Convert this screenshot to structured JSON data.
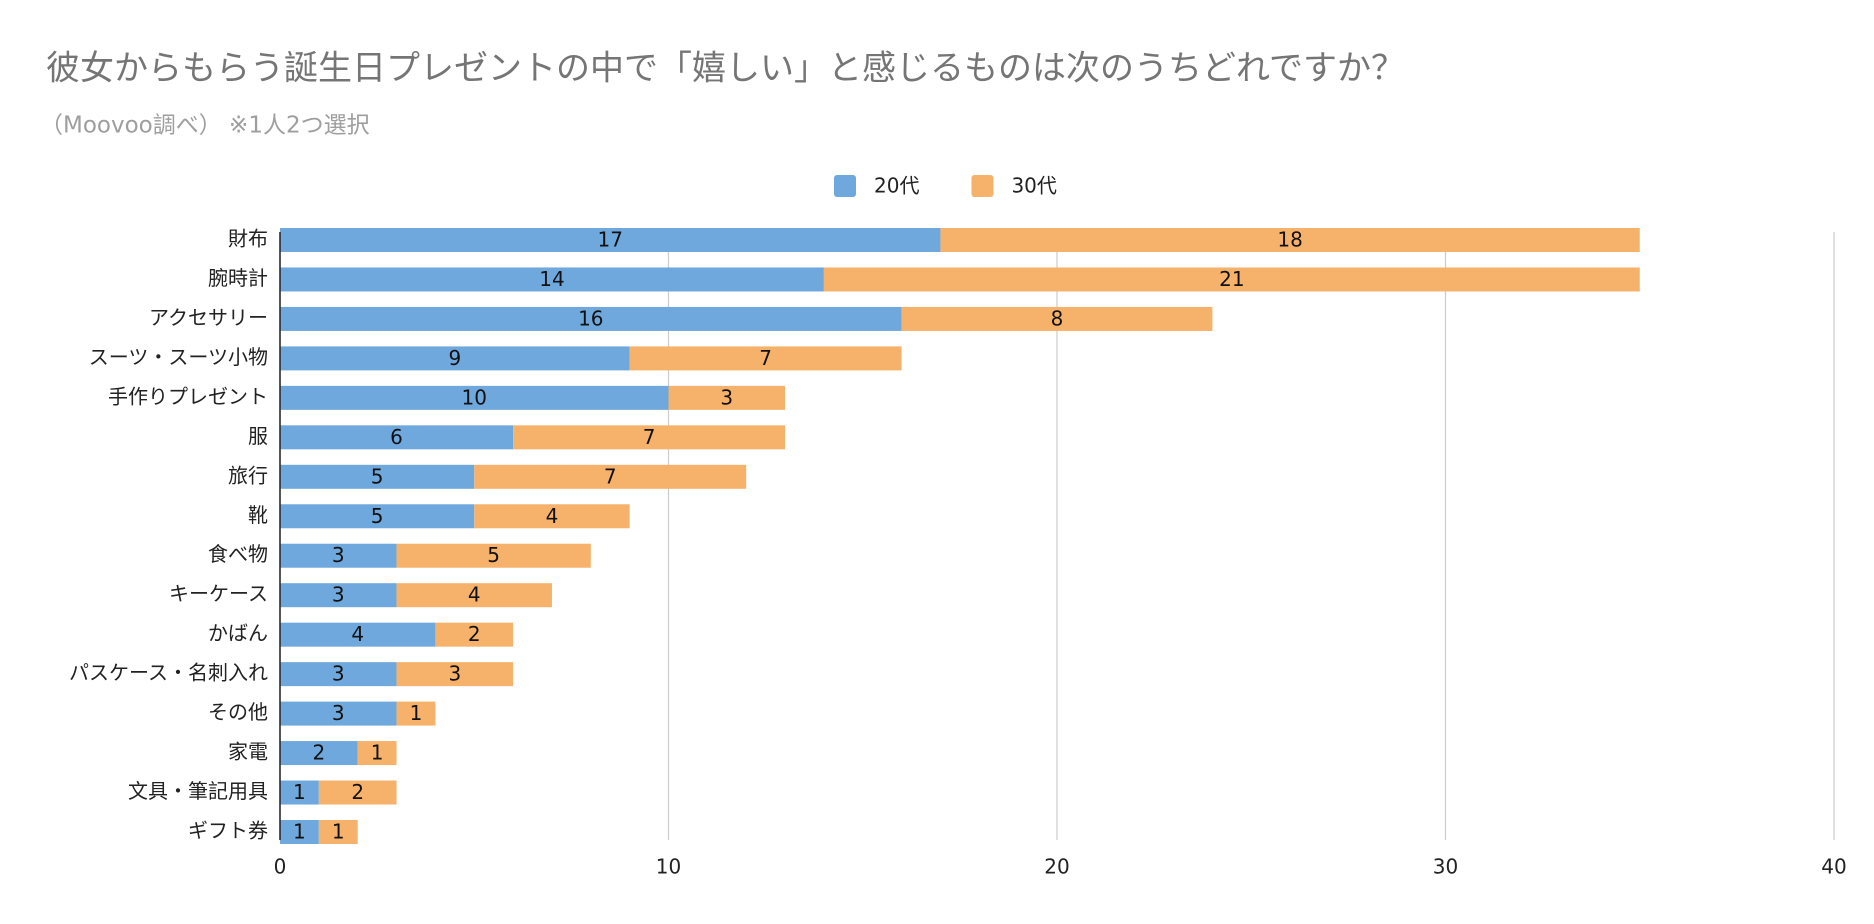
{
  "chart_data": {
    "type": "bar",
    "orientation": "horizontal",
    "stacked": true,
    "title": "彼女からもらう誕生日プレゼントの中で「嬉しい」と感じるものは次のうちどれですか？",
    "subtitle": "（Moovoo調べ） ※1人2つ選択",
    "categories": [
      "財布",
      "腕時計",
      "アクセサリー",
      "スーツ・スーツ小物",
      "手作りプレゼント",
      "服",
      "旅行",
      "靴",
      "食べ物",
      "キーケース",
      "かばん",
      "パスケース・名刺入れ",
      "その他",
      "家電",
      "文具・筆記用具",
      "ギフト券"
    ],
    "series": [
      {
        "name": "20代",
        "color": "#6fa8dc",
        "values": [
          17,
          14,
          16,
          9,
          10,
          6,
          5,
          5,
          3,
          3,
          4,
          3,
          3,
          2,
          1,
          1
        ]
      },
      {
        "name": "30代",
        "color": "#f6b26b",
        "values": [
          18,
          21,
          8,
          7,
          3,
          7,
          7,
          4,
          5,
          4,
          2,
          3,
          1,
          1,
          2,
          1
        ]
      }
    ],
    "xlim": [
      0,
      40
    ],
    "xticks": [
      0,
      10,
      20,
      30,
      40
    ],
    "grid": true,
    "legend": "top"
  }
}
